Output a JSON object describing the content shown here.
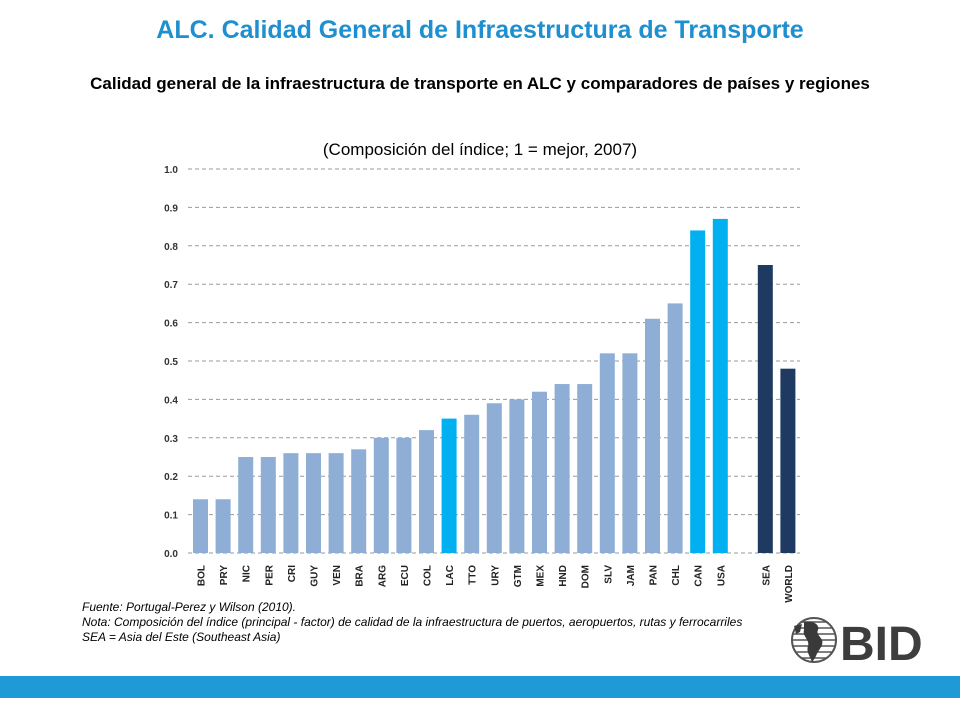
{
  "header": {
    "title": "ALC. Calidad General de Infraestructura de Transporte",
    "subtitle": "Calidad general de la infraestructura de transporte en ALC y comparadores de países y regiones",
    "subtitle2": "(Composición del índice; 1 = mejor, 2007)"
  },
  "chart_data": {
    "type": "bar",
    "ylim": [
      0,
      1.0
    ],
    "yticks": [
      "0.0",
      "0.1",
      "0.2",
      "0.3",
      "0.4",
      "0.5",
      "0.6",
      "0.7",
      "0.8",
      "0.9",
      "1.0"
    ],
    "grid": true,
    "categories": [
      "BOL",
      "PRY",
      "NIC",
      "PER",
      "CRI",
      "GUY",
      "VEN",
      "BRA",
      "ARG",
      "ECU",
      "COL",
      "LAC",
      "TTO",
      "URY",
      "GTM",
      "MEX",
      "HND",
      "DOM",
      "SLV",
      "JAM",
      "PAN",
      "CHL",
      "CAN",
      "USA",
      "SEA",
      "WORLD"
    ],
    "values": [
      0.14,
      0.14,
      0.25,
      0.25,
      0.26,
      0.26,
      0.26,
      0.27,
      0.3,
      0.3,
      0.32,
      0.35,
      0.36,
      0.39,
      0.4,
      0.42,
      0.44,
      0.44,
      0.52,
      0.52,
      0.61,
      0.65,
      0.84,
      0.87,
      0.75,
      0.48
    ],
    "colors": {
      "default": "#8eaed6",
      "highlight": "#00b0f0",
      "region": "#1f3a60",
      "grid": "#9a9a9a"
    },
    "bar_groups": [
      "default",
      "default",
      "default",
      "default",
      "default",
      "default",
      "default",
      "default",
      "default",
      "default",
      "default",
      "highlight",
      "default",
      "default",
      "default",
      "default",
      "default",
      "default",
      "default",
      "default",
      "default",
      "default",
      "highlight",
      "highlight",
      "region",
      "region"
    ]
  },
  "notes": {
    "source": "Fuente: Portugal-Perez y Wilson (2010).",
    "note": "Nota: Composición del índice (principal - factor) de calidad de la infraestructura de puertos, aeropuertos, rutas y ferrocarriles",
    "sea": "SEA = Asia del Este (Southeast Asia)"
  },
  "logo": {
    "text": "BID"
  }
}
